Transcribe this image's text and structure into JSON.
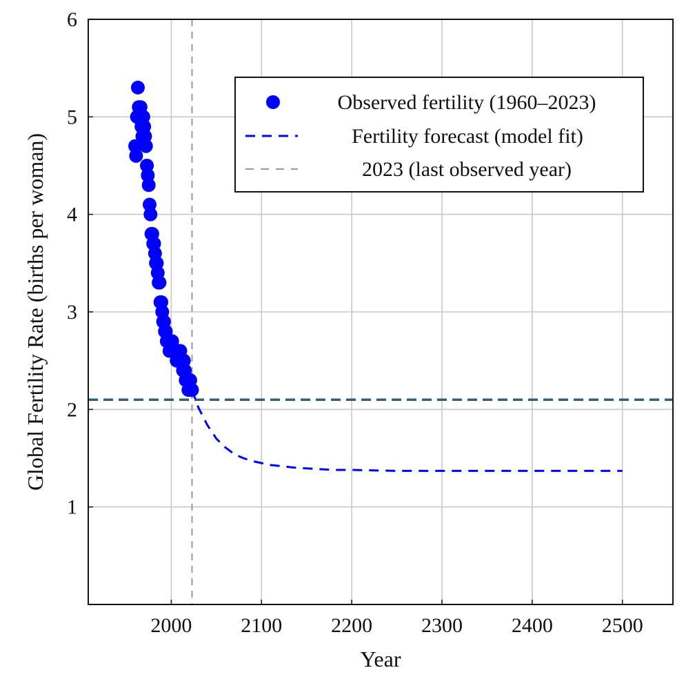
{
  "chart_data": {
    "type": "scatter",
    "title": "",
    "xlabel": "Year",
    "ylabel": "Global Fertility Rate (births per woman)",
    "xlim": [
      1908,
      2556
    ],
    "ylim": [
      0,
      6
    ],
    "grid": true,
    "xticks": [
      2000,
      2100,
      2200,
      2300,
      2400,
      2500
    ],
    "yticks": [
      1,
      2,
      3,
      4,
      5,
      6
    ],
    "xtick_labels": [
      "2000",
      "2100",
      "2200",
      "2300",
      "2400",
      "2500"
    ],
    "ytick_labels": [
      "1",
      "2",
      "3",
      "4",
      "5",
      "6"
    ],
    "legend_position": "top-right",
    "series": [
      {
        "name": "Observed fertility (1960–2023)",
        "kind": "scatter",
        "color": "#0000ff",
        "x": [
          1960,
          1961,
          1962,
          1963,
          1964,
          1965,
          1966,
          1967,
          1968,
          1969,
          1970,
          1971,
          1972,
          1973,
          1974,
          1975,
          1976,
          1977,
          1978,
          1979,
          1980,
          1981,
          1982,
          1983,
          1984,
          1985,
          1986,
          1987,
          1988,
          1989,
          1990,
          1991,
          1992,
          1993,
          1994,
          1995,
          1996,
          1997,
          1998,
          1999,
          2000,
          2001,
          2002,
          2003,
          2004,
          2005,
          2006,
          2007,
          2008,
          2009,
          2010,
          2011,
          2012,
          2013,
          2014,
          2015,
          2016,
          2017,
          2018,
          2019,
          2020,
          2021,
          2022,
          2023
        ],
        "y": [
          4.7,
          4.6,
          5.0,
          5.3,
          5.1,
          5.0,
          5.1,
          4.9,
          4.8,
          5.0,
          4.9,
          4.8,
          4.7,
          4.5,
          4.4,
          4.3,
          4.1,
          4.0,
          3.8,
          3.8,
          3.7,
          3.7,
          3.6,
          3.5,
          3.5,
          3.4,
          3.3,
          3.3,
          3.1,
          3.1,
          3.0,
          2.9,
          2.9,
          2.8,
          2.8,
          2.7,
          2.7,
          2.7,
          2.6,
          2.7,
          2.6,
          2.7,
          2.6,
          2.6,
          2.6,
          2.6,
          2.5,
          2.5,
          2.5,
          2.6,
          2.6,
          2.5,
          2.5,
          2.4,
          2.5,
          2.4,
          2.3,
          2.3,
          2.3,
          2.2,
          2.2,
          2.3,
          2.2,
          2.2
        ]
      },
      {
        "name": "Fertility forecast (model fit)",
        "kind": "line",
        "style": "dashed",
        "color": "#0000ff",
        "x": [
          2023,
          2030,
          2040,
          2050,
          2060,
          2070,
          2080,
          2090,
          2100,
          2110,
          2120,
          2140,
          2160,
          2180,
          2200,
          2250,
          2300,
          2350,
          2400,
          2450,
          2500
        ],
        "y": [
          2.2,
          2.02,
          1.84,
          1.7,
          1.61,
          1.54,
          1.5,
          1.47,
          1.45,
          1.43,
          1.42,
          1.4,
          1.39,
          1.38,
          1.38,
          1.37,
          1.37,
          1.37,
          1.37,
          1.37,
          1.37
        ]
      },
      {
        "name": "2023 (last observed year)",
        "kind": "vline",
        "style": "dashed",
        "color": "#999999",
        "x": 2023
      }
    ],
    "reference_lines": [
      {
        "kind": "hline",
        "y": 2.1,
        "style": "dashed",
        "color": "#2f5f7f"
      }
    ]
  }
}
